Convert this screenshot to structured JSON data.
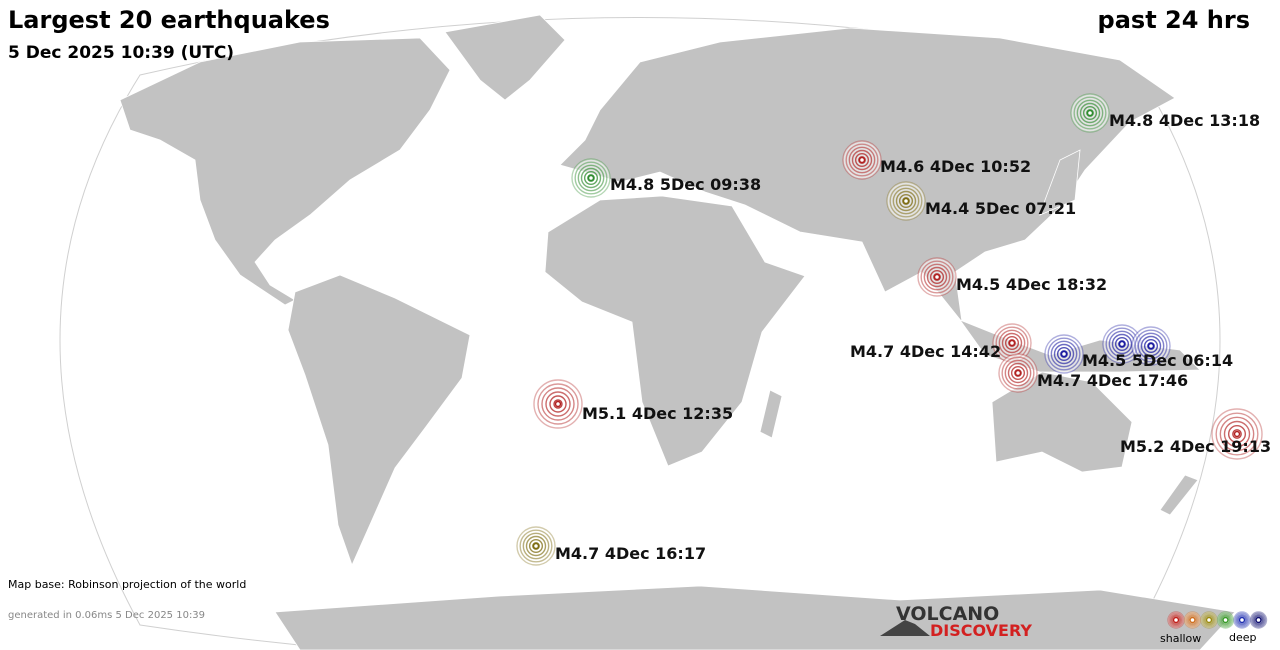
{
  "header": {
    "title": "Largest 20 earthquakes",
    "subtitle": "5 Dec 2025 10:39 (UTC)",
    "period": "past 24 hrs"
  },
  "quakes": [
    {
      "label": "M4.8  5Dec 09:38",
      "color": "#2e8b2e"
    },
    {
      "label": "M4.6  4Dec 10:52",
      "color": "#b02020"
    },
    {
      "label": "M4.4  5Dec 07:21",
      "color": "#7d6b10"
    },
    {
      "label": "M4.8  4Dec 13:18",
      "color": "#2e8b2e"
    },
    {
      "label": "M4.5  4Dec 18:32",
      "color": "#b02020"
    },
    {
      "label": "M4.7  4Dec 14:42",
      "color": "#b02020"
    },
    {
      "label": "M4.7  4Dec 17:46",
      "color": "#b02020"
    },
    {
      "color": "#1a1aa0"
    },
    {
      "label": "M4.5  5Dec 06:14",
      "color": "#1a1aa0"
    },
    {
      "color": "#1a1aa0"
    },
    {
      "label": "M5.1  4Dec 12:35",
      "color": "#b02020"
    },
    {
      "label": "M5.2  4Dec 19:13",
      "color": "#b02020"
    },
    {
      "label": "M4.7  4Dec 16:17",
      "color": "#7d6b10"
    }
  ],
  "footer": {
    "map_base": "Map base: Robinson projection of the world",
    "generated": "generated in 0.06ms  5 Dec 2025 10:39"
  },
  "logo": {
    "line1": "VOLCANO",
    "line2": "DISCOVERY"
  },
  "legend": {
    "shallow": "shallow",
    "deep": "deep"
  }
}
